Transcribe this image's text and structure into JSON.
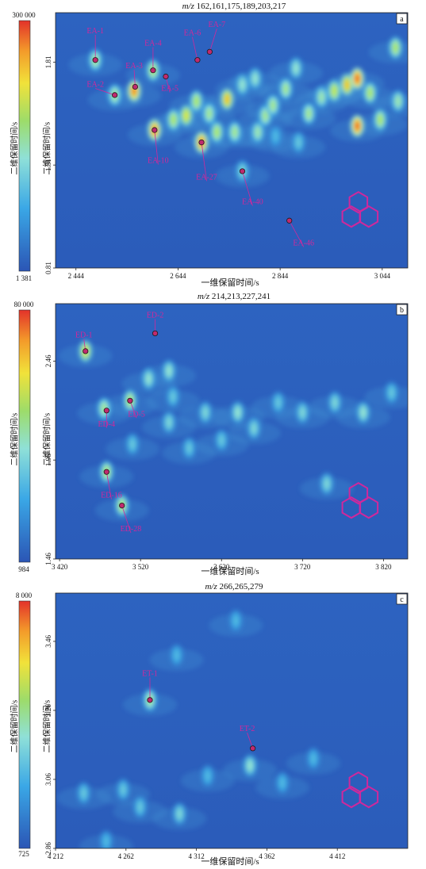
{
  "chart_data": [
    {
      "type": "heatmap",
      "panel_letter": "a",
      "title_prefix": "m/z",
      "title_values": "162,161,175,189,203,217",
      "xlabel": "一维保留时间/s",
      "ylabel": "二维保留时间/s",
      "colorbar_label": "二维保留时间/s",
      "colorbar_max": "300 000",
      "colorbar_min": "1 381",
      "xlim": [
        2404,
        3094
      ],
      "ylim": [
        0.81,
        2.05
      ],
      "x_ticks": [
        2444,
        2644,
        2844,
        3044
      ],
      "x_tick_labels": [
        "2 444",
        "2 644",
        "2 844",
        "3 044"
      ],
      "y_ticks": [
        0.81,
        1.31,
        1.81
      ],
      "y_tick_labels": [
        "0.81",
        "1.31",
        "1.81"
      ],
      "labels": [
        {
          "name": "EA-1",
          "x": 2482,
          "y": 1.82,
          "lx": 2482,
          "ly": 1.95
        },
        {
          "name": "EA-2",
          "x": 2520,
          "y": 1.65,
          "lx": 2482,
          "ly": 1.69
        },
        {
          "name": "EA-3",
          "x": 2560,
          "y": 1.69,
          "lx": 2558,
          "ly": 1.78
        },
        {
          "name": "EA-4",
          "x": 2595,
          "y": 1.77,
          "lx": 2595,
          "ly": 1.89
        },
        {
          "name": "EA-5",
          "x": 2620,
          "y": 1.74,
          "lx": 2628,
          "ly": 1.67
        },
        {
          "name": "EA-6",
          "x": 2682,
          "y": 1.82,
          "lx": 2672,
          "ly": 1.94
        },
        {
          "name": "EA-7",
          "x": 2706,
          "y": 1.86,
          "lx": 2720,
          "ly": 1.98
        },
        {
          "name": "EA-10",
          "x": 2598,
          "y": 1.48,
          "lx": 2605,
          "ly": 1.32
        },
        {
          "name": "EA-27",
          "x": 2690,
          "y": 1.42,
          "lx": 2700,
          "ly": 1.24
        },
        {
          "name": "EA-40",
          "x": 2770,
          "y": 1.28,
          "lx": 2790,
          "ly": 1.12
        },
        {
          "name": "EA-46",
          "x": 2862,
          "y": 1.04,
          "lx": 2890,
          "ly": 0.92
        }
      ],
      "spots": [
        {
          "x": 2482,
          "y": 1.82,
          "v": 0.55
        },
        {
          "x": 2520,
          "y": 1.65,
          "v": 0.55
        },
        {
          "x": 2558,
          "y": 1.67,
          "v": 0.9
        },
        {
          "x": 2595,
          "y": 1.77,
          "v": 0.6
        },
        {
          "x": 2598,
          "y": 1.48,
          "v": 0.9
        },
        {
          "x": 2635,
          "y": 1.53,
          "v": 0.6
        },
        {
          "x": 2660,
          "y": 1.55,
          "v": 0.7
        },
        {
          "x": 2680,
          "y": 1.62,
          "v": 0.6
        },
        {
          "x": 2690,
          "y": 1.42,
          "v": 0.9
        },
        {
          "x": 2705,
          "y": 1.56,
          "v": 0.55
        },
        {
          "x": 2720,
          "y": 1.47,
          "v": 0.6
        },
        {
          "x": 2740,
          "y": 1.63,
          "v": 0.8
        },
        {
          "x": 2755,
          "y": 1.47,
          "v": 0.55
        },
        {
          "x": 2770,
          "y": 1.28,
          "v": 0.4
        },
        {
          "x": 2770,
          "y": 1.7,
          "v": 0.45
        },
        {
          "x": 2795,
          "y": 1.73,
          "v": 0.45
        },
        {
          "x": 2800,
          "y": 1.47,
          "v": 0.5
        },
        {
          "x": 2815,
          "y": 1.55,
          "v": 0.55
        },
        {
          "x": 2830,
          "y": 1.6,
          "v": 0.55
        },
        {
          "x": 2855,
          "y": 1.68,
          "v": 0.55
        },
        {
          "x": 2875,
          "y": 1.78,
          "v": 0.45
        },
        {
          "x": 2900,
          "y": 1.56,
          "v": 0.55
        },
        {
          "x": 2925,
          "y": 1.64,
          "v": 0.5
        },
        {
          "x": 2950,
          "y": 1.67,
          "v": 0.65
        },
        {
          "x": 2975,
          "y": 1.7,
          "v": 0.8
        },
        {
          "x": 2995,
          "y": 1.73,
          "v": 0.95
        },
        {
          "x": 2995,
          "y": 1.5,
          "v": 0.95
        },
        {
          "x": 3020,
          "y": 1.66,
          "v": 0.6
        },
        {
          "x": 3040,
          "y": 1.53,
          "v": 0.6
        },
        {
          "x": 3070,
          "y": 1.88,
          "v": 0.6
        },
        {
          "x": 3075,
          "y": 1.62,
          "v": 0.5
        },
        {
          "x": 2880,
          "y": 1.42,
          "v": 0.35
        },
        {
          "x": 2835,
          "y": 1.45,
          "v": 0.3
        }
      ]
    },
    {
      "type": "heatmap",
      "panel_letter": "b",
      "title_prefix": "m/z",
      "title_values": "214,213,227,241",
      "xlabel": "一维保留时间/s",
      "ylabel": "二维保留时间/s",
      "colorbar_label": "二维保留时间/s",
      "colorbar_max": "80 000",
      "colorbar_min": "984",
      "xlim": [
        3415,
        3850
      ],
      "ylim": [
        1.46,
        2.75
      ],
      "x_ticks": [
        3420,
        3520,
        3620,
        3720,
        3820
      ],
      "x_tick_labels": [
        "3 420",
        "3 520",
        "3 620",
        "3 720",
        "3 820"
      ],
      "y_ticks": [
        1.46,
        1.96,
        2.46
      ],
      "y_tick_labels": [
        "1.46",
        "1.96",
        "2.46"
      ],
      "labels": [
        {
          "name": "ED-1",
          "x": 3452,
          "y": 2.51,
          "lx": 3450,
          "ly": 2.58
        },
        {
          "name": "ED-2",
          "x": 3538,
          "y": 2.6,
          "lx": 3538,
          "ly": 2.68
        },
        {
          "name": "ED-4",
          "x": 3478,
          "y": 2.21,
          "lx": 3478,
          "ly": 2.13
        },
        {
          "name": "ED-5",
          "x": 3507,
          "y": 2.26,
          "lx": 3515,
          "ly": 2.18
        },
        {
          "name": "ED-16",
          "x": 3478,
          "y": 1.9,
          "lx": 3484,
          "ly": 1.77
        },
        {
          "name": "ED-28",
          "x": 3497,
          "y": 1.73,
          "lx": 3508,
          "ly": 1.6
        }
      ],
      "spots": [
        {
          "x": 3452,
          "y": 2.51,
          "v": 0.7
        },
        {
          "x": 3475,
          "y": 2.22,
          "v": 0.55
        },
        {
          "x": 3507,
          "y": 2.26,
          "v": 0.6
        },
        {
          "x": 3478,
          "y": 1.9,
          "v": 0.6
        },
        {
          "x": 3497,
          "y": 1.73,
          "v": 0.6
        },
        {
          "x": 3530,
          "y": 2.37,
          "v": 0.45
        },
        {
          "x": 3555,
          "y": 2.41,
          "v": 0.45
        },
        {
          "x": 3560,
          "y": 2.28,
          "v": 0.35
        },
        {
          "x": 3510,
          "y": 2.04,
          "v": 0.35
        },
        {
          "x": 3555,
          "y": 2.15,
          "v": 0.4
        },
        {
          "x": 3600,
          "y": 2.2,
          "v": 0.4
        },
        {
          "x": 3640,
          "y": 2.2,
          "v": 0.45
        },
        {
          "x": 3660,
          "y": 2.12,
          "v": 0.4
        },
        {
          "x": 3620,
          "y": 2.06,
          "v": 0.35
        },
        {
          "x": 3690,
          "y": 2.25,
          "v": 0.35
        },
        {
          "x": 3720,
          "y": 2.2,
          "v": 0.4
        },
        {
          "x": 3760,
          "y": 2.25,
          "v": 0.4
        },
        {
          "x": 3795,
          "y": 2.2,
          "v": 0.45
        },
        {
          "x": 3750,
          "y": 1.84,
          "v": 0.4
        },
        {
          "x": 3830,
          "y": 2.3,
          "v": 0.35
        },
        {
          "x": 3580,
          "y": 2.02,
          "v": 0.35
        }
      ]
    },
    {
      "type": "heatmap",
      "panel_letter": "c",
      "title_prefix": "m/z",
      "title_values": "266,265,279",
      "xlabel": "一维保留时间/s",
      "ylabel": "二维保留时间/s",
      "colorbar_label": "二维保留时间/s",
      "colorbar_max": "8 000",
      "colorbar_min": "725",
      "xlim": [
        4212,
        4462
      ],
      "ylim": [
        2.86,
        3.6
      ],
      "x_ticks": [
        4212,
        4262,
        4312,
        4362,
        4412
      ],
      "x_tick_labels": [
        "4 212",
        "4 262",
        "4 312",
        "4 362",
        "4 412"
      ],
      "y_ticks": [
        2.86,
        3.06,
        3.26,
        3.46
      ],
      "y_tick_labels": [
        "2.86",
        "3.06",
        "3.26",
        "3.46"
      ],
      "labels": [
        {
          "name": "ET-1",
          "x": 4279,
          "y": 3.29,
          "lx": 4279,
          "ly": 3.36
        },
        {
          "name": "ET-2",
          "x": 4352,
          "y": 3.15,
          "lx": 4348,
          "ly": 3.2
        }
      ],
      "spots": [
        {
          "x": 4279,
          "y": 3.29,
          "v": 0.55
        },
        {
          "x": 4350,
          "y": 3.1,
          "v": 0.45
        },
        {
          "x": 4340,
          "y": 3.52,
          "v": 0.3
        },
        {
          "x": 4298,
          "y": 3.42,
          "v": 0.3
        },
        {
          "x": 4232,
          "y": 3.02,
          "v": 0.35
        },
        {
          "x": 4260,
          "y": 3.03,
          "v": 0.35
        },
        {
          "x": 4272,
          "y": 2.98,
          "v": 0.35
        },
        {
          "x": 4300,
          "y": 2.96,
          "v": 0.4
        },
        {
          "x": 4320,
          "y": 3.07,
          "v": 0.3
        },
        {
          "x": 4373,
          "y": 3.05,
          "v": 0.3
        },
        {
          "x": 4248,
          "y": 2.88,
          "v": 0.3
        },
        {
          "x": 4395,
          "y": 3.12,
          "v": 0.3
        }
      ]
    }
  ]
}
